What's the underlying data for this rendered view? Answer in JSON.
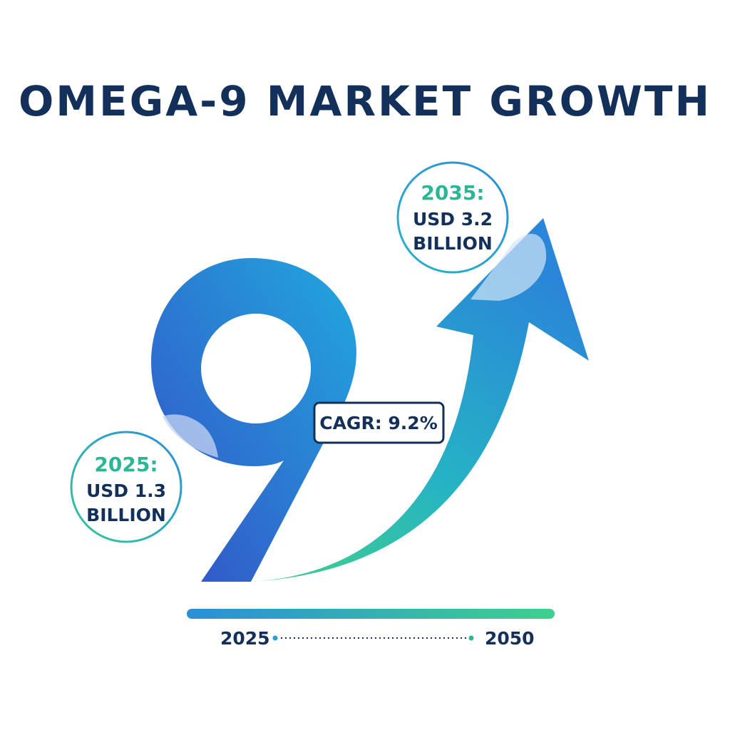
{
  "chart_data": {
    "type": "infographic",
    "title": "OMEGA-9 MARKET GROWTH",
    "points": [
      {
        "year": "2025:",
        "value_line1": "USD 1.3",
        "value_line2": "BILLION",
        "x": 2025,
        "y": 1.3
      },
      {
        "year": "2035:",
        "value_line1": "USD 3.2",
        "value_line2": "BILLION",
        "x": 2035,
        "y": 3.2
      }
    ],
    "cagr_label": "CAGR: 9.2%",
    "timeline": {
      "start": "2025",
      "end": "2050"
    },
    "colors": {
      "title": "#13305a",
      "accent_green": "#2bb796",
      "blue_dark": "#3354c8",
      "blue_light": "#25a7de",
      "green": "#3bcf8e"
    },
    "icons": [
      "nine-numeral-graphic",
      "growth-arrow-icon"
    ]
  }
}
